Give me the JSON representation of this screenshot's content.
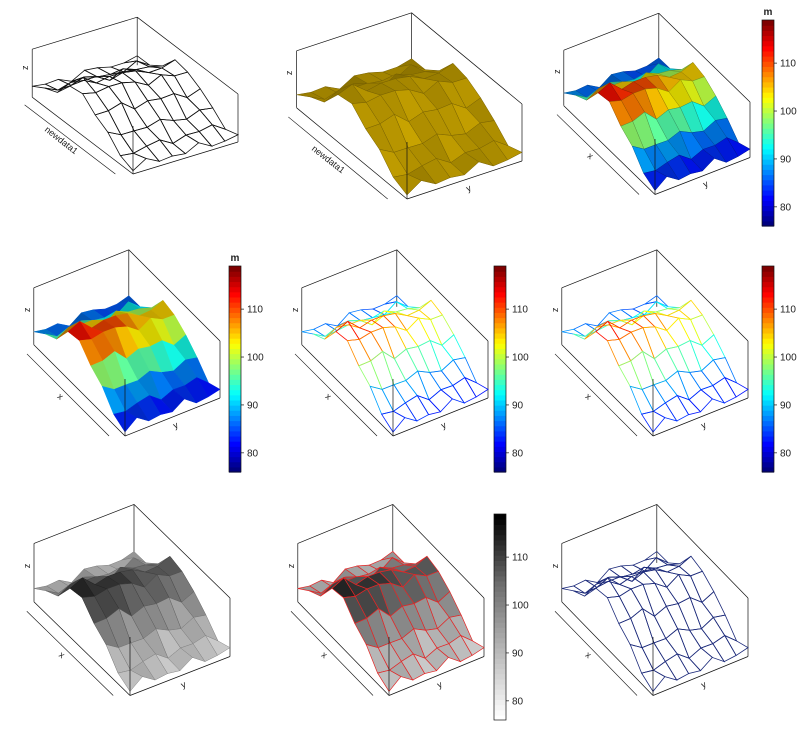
{
  "colors": {
    "bg": "#ffffff",
    "frame": "#111111",
    "gold": "#c9a400",
    "wire_red": "#e32626",
    "wire_navy": "#1c2a7a"
  },
  "palettes": {
    "jet": [
      "#00007f",
      "#0000ff",
      "#007fff",
      "#00ffff",
      "#7fff7f",
      "#ffff00",
      "#ff7f00",
      "#ff0000",
      "#7f0000"
    ],
    "gray": [
      "#ffffff",
      "#b8b8b8",
      "#6c6c6c",
      "#000000"
    ]
  },
  "chart_data": [
    {
      "type": "surface",
      "style": "wireframe",
      "xlabel": "newdata1",
      "ylabel": "",
      "zlabel": "z",
      "color": "#111111"
    },
    {
      "type": "surface",
      "style": "solid",
      "xlabel": "newdata1",
      "ylabel": "y",
      "zlabel": "z",
      "color": "#c9a400"
    },
    {
      "type": "surface",
      "style": "solid",
      "xlabel": "x",
      "ylabel": "y",
      "zlabel": "z",
      "palette": "jet",
      "colorbar": {
        "title": "m",
        "ticks": [
          "80",
          "90",
          "100",
          "110"
        ],
        "range": [
          76,
          119
        ]
      }
    },
    {
      "type": "surface",
      "style": "solid-smooth",
      "xlabel": "x",
      "ylabel": "y",
      "zlabel": "z",
      "palette": "jet",
      "colorbar": {
        "title": "m",
        "ticks": [
          "80",
          "90",
          "100",
          "110"
        ],
        "range": [
          76,
          119
        ]
      }
    },
    {
      "type": "surface",
      "style": "wireframe",
      "xlabel": "x",
      "ylabel": "y",
      "zlabel": "z",
      "palette": "jet",
      "colorbar": {
        "title": "",
        "ticks": [
          "80",
          "90",
          "100",
          "110"
        ],
        "range": [
          76,
          119
        ]
      }
    },
    {
      "type": "surface",
      "style": "wireframe",
      "xlabel": "x",
      "ylabel": "y",
      "zlabel": "z",
      "palette": "jet",
      "colorbar": {
        "title": "",
        "ticks": [
          "80",
          "90",
          "100",
          "110"
        ],
        "range": [
          76,
          119
        ]
      }
    },
    {
      "type": "surface",
      "style": "solid",
      "xlabel": "x",
      "ylabel": "y",
      "zlabel": "z",
      "palette": "gray"
    },
    {
      "type": "surface",
      "style": "solid",
      "xlabel": "x",
      "ylabel": "y",
      "zlabel": "z",
      "palette": "gray",
      "line": "#e32626",
      "colorbar": {
        "title": "",
        "ticks": [
          "80",
          "90",
          "100",
          "110"
        ],
        "range": [
          76,
          119
        ]
      }
    },
    {
      "type": "surface",
      "style": "wireframe",
      "xlabel": "x",
      "ylabel": "y",
      "zlabel": "z",
      "color": "#1c2a7a"
    }
  ]
}
